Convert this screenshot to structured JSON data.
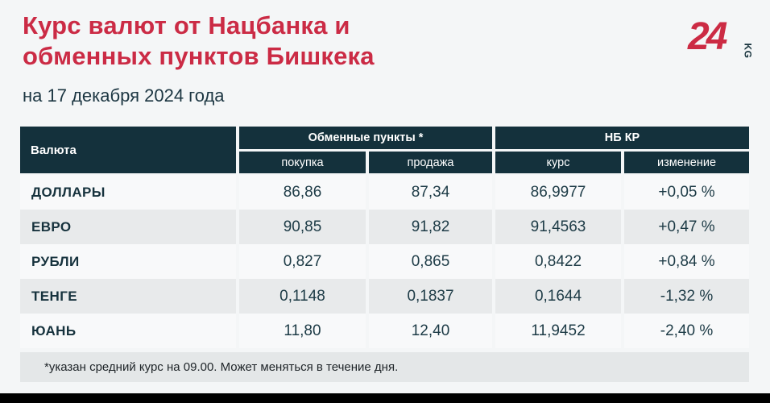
{
  "header": {
    "title_line1": "Курс валют от Нацбанка и",
    "title_line2": "обменных пунктов Бишкека",
    "subtitle": "на 17 декабря 2024 года",
    "logo_number": "24",
    "logo_suffix": "KG"
  },
  "table": {
    "header": {
      "currency": "Валюта",
      "group_exchange": "Обменные пункты *",
      "group_nbkr": "НБ КР",
      "buy": "покупка",
      "sell": "продажа",
      "rate": "курс",
      "change": "изменение"
    },
    "rows": [
      {
        "currency": "ДОЛЛАРЫ",
        "buy": "86,86",
        "sell": "87,34",
        "rate": "86,9977",
        "change": "+0,05 %"
      },
      {
        "currency": "ЕВРО",
        "buy": "90,85",
        "sell": "91,82",
        "rate": "91,4563",
        "change": "+0,47 %"
      },
      {
        "currency": "РУБЛИ",
        "buy": "0,827",
        "sell": "0,865",
        "rate": "0,8422",
        "change": "+0,84 %"
      },
      {
        "currency": "ТЕНГЕ",
        "buy": "0,1148",
        "sell": "0,1837",
        "rate": "0,1644",
        "change": "-1,32 %"
      },
      {
        "currency": "ЮАНЬ",
        "buy": "11,80",
        "sell": "12,40",
        "rate": "11,9452",
        "change": "-2,40 %"
      }
    ]
  },
  "footnote": {
    "text": "*указан средний курс на 09.00. Может меняться в течение дня."
  },
  "colors": {
    "accent_red": "#cb2b45",
    "header_bg": "#14313c",
    "row_bg": "#f8f9fa",
    "row_alt_bg": "#e8eaeb",
    "page_bg": "#f4f6f7",
    "footnote_bg": "#e4e7e8",
    "bottom_bar": "#000000"
  },
  "chart_data": {
    "type": "table",
    "title": "Курс валют от Нацбанка и обменных пунктов Бишкека",
    "subtitle": "на 17 декабря 2024 года",
    "column_groups": [
      {
        "label": "Обменные пункты *",
        "columns": [
          "покупка",
          "продажа"
        ]
      },
      {
        "label": "НБ КР",
        "columns": [
          "курс",
          "изменение"
        ]
      }
    ],
    "columns": [
      "Валюта",
      "Обменные пункты: покупка",
      "Обменные пункты: продажа",
      "НБ КР: курс",
      "НБ КР: изменение (%)"
    ],
    "rows": [
      [
        "ДОЛЛАРЫ",
        86.86,
        87.34,
        86.9977,
        0.05
      ],
      [
        "ЕВРО",
        90.85,
        91.82,
        91.4563,
        0.47
      ],
      [
        "РУБЛИ",
        0.827,
        0.865,
        0.8422,
        0.84
      ],
      [
        "ТЕНГЕ",
        0.1148,
        0.1837,
        0.1644,
        -1.32
      ],
      [
        "ЮАНЬ",
        11.8,
        12.4,
        11.9452,
        -2.4
      ]
    ],
    "footnote": "*указан средний курс на 09.00. Может меняться в течение дня.",
    "source_brand": "24 KG"
  }
}
